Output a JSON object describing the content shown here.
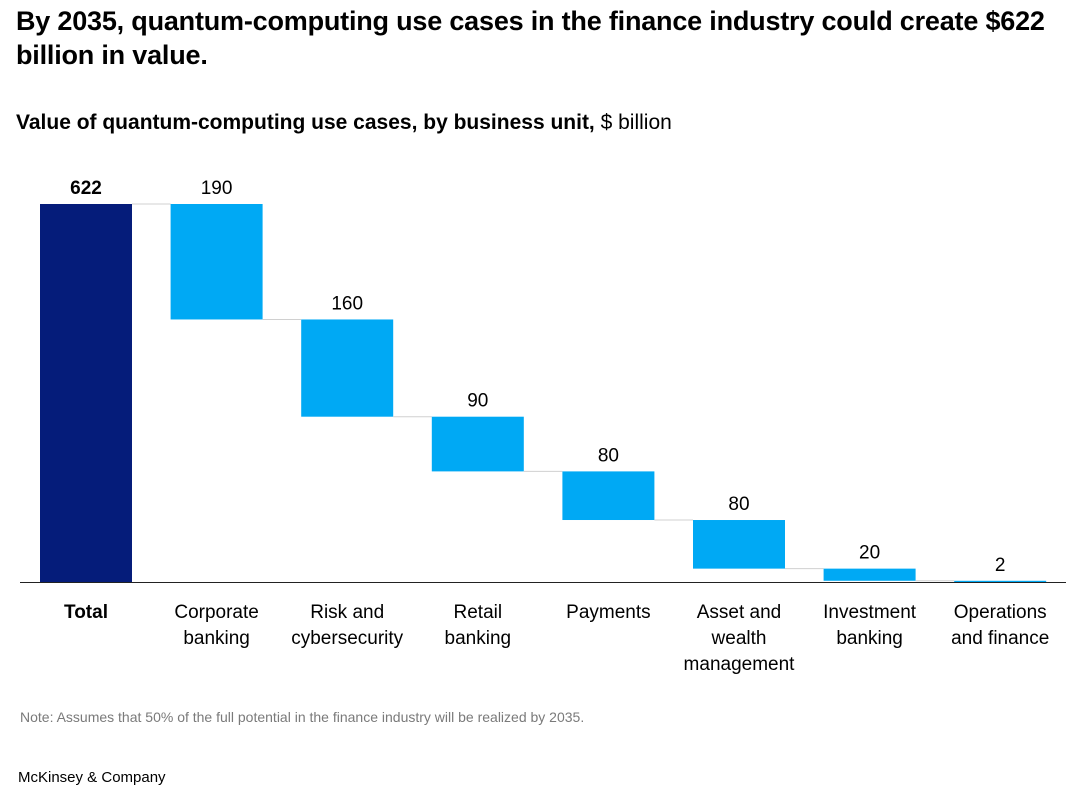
{
  "headline": "By 2035, quantum-computing use cases in the finance industry could create $622 billion in value.",
  "subtitle": {
    "bold": "Value of quantum-computing use cases, by business unit,",
    "unit": " $ billion"
  },
  "chart_data": {
    "type": "waterfall",
    "title": "Value of quantum-computing use cases, by business unit",
    "unit": "$ billion",
    "ylim": [
      0,
      622
    ],
    "total": {
      "label": [
        "Total"
      ],
      "value": 622,
      "value_label": "622"
    },
    "steps": [
      {
        "label": [
          "Corporate",
          "banking"
        ],
        "value": 190,
        "value_label": "190"
      },
      {
        "label": [
          "Risk and",
          "cybersecurity"
        ],
        "value": 160,
        "value_label": "160"
      },
      {
        "label": [
          "Retail",
          "banking"
        ],
        "value": 90,
        "value_label": "90"
      },
      {
        "label": [
          "Payments"
        ],
        "value": 80,
        "value_label": "80"
      },
      {
        "label": [
          "Asset and",
          "wealth",
          "management"
        ],
        "value": 80,
        "value_label": "80"
      },
      {
        "label": [
          "Investment",
          "banking"
        ],
        "value": 20,
        "value_label": "20"
      },
      {
        "label": [
          "Operations",
          "and finance"
        ],
        "value": 2,
        "value_label": "2"
      }
    ],
    "colors": {
      "total": "#051c7a",
      "step": "#00a9f4",
      "connector": "#d0d0d0",
      "baseline": "#222222",
      "text": "#000000"
    }
  },
  "note": "Note: Assumes that 50% of the full potential in the finance industry will be realized by 2035.",
  "source": "McKinsey & Company"
}
